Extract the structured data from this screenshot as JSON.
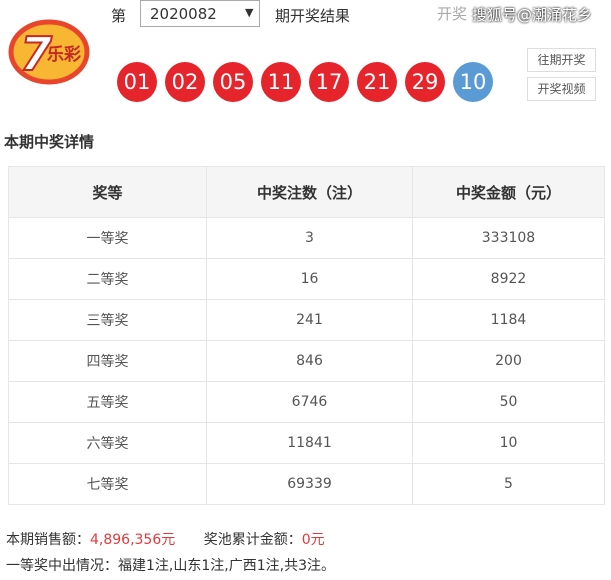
{
  "header": {
    "period_prefix": "第",
    "period": "2020082",
    "period_suffix": "期开奖结果",
    "draw_label": "开奖",
    "watermark": "搜狐号@潮涌花乡"
  },
  "logo": {
    "number": "7",
    "text": "乐彩"
  },
  "balls": {
    "red": [
      "01",
      "02",
      "05",
      "11",
      "17",
      "21",
      "29"
    ],
    "blue": [
      "10"
    ]
  },
  "buttons": [
    "往期开奖",
    "开奖视频"
  ],
  "section_title": "本期中奖详情",
  "table": {
    "headers": [
      "奖等",
      "中奖注数（注）",
      "中奖金额（元）"
    ],
    "rows": [
      [
        "一等奖",
        "3",
        "333108"
      ],
      [
        "二等奖",
        "16",
        "8922"
      ],
      [
        "三等奖",
        "241",
        "1184"
      ],
      [
        "四等奖",
        "846",
        "200"
      ],
      [
        "五等奖",
        "6746",
        "50"
      ],
      [
        "六等奖",
        "11841",
        "10"
      ],
      [
        "七等奖",
        "69339",
        "5"
      ]
    ]
  },
  "footer": {
    "sales_label": "本期销售额：",
    "sales_value": "4,896,356元",
    "pool_label": "奖池累计金额：",
    "pool_value": "0元",
    "first_prize_note": "一等奖中出情况：福建1注,山东1注,广西1注,共3注。"
  }
}
